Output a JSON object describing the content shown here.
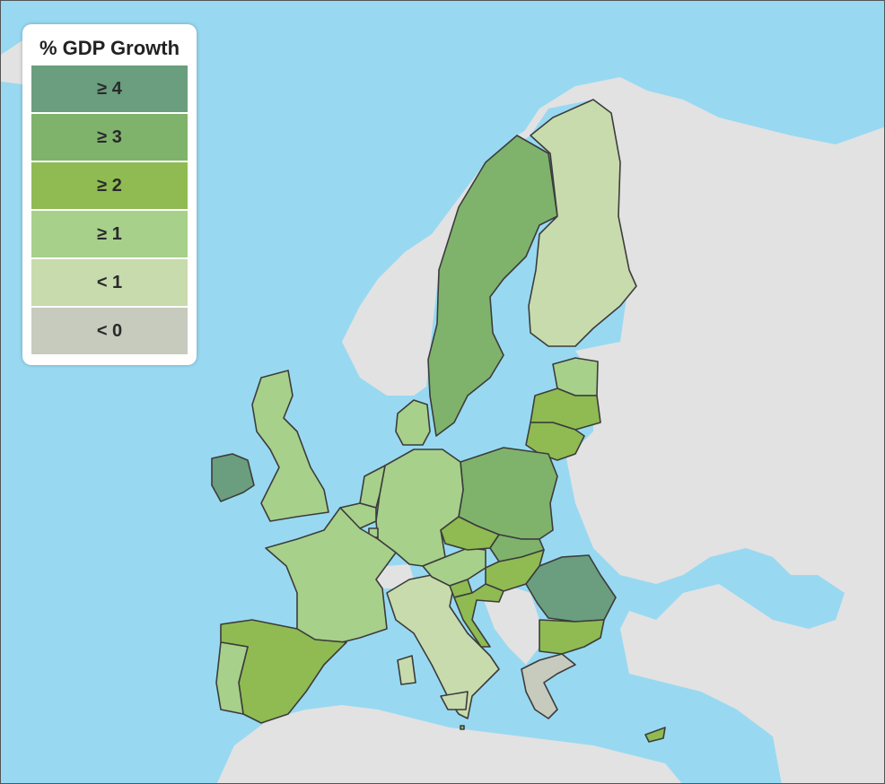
{
  "legend": {
    "title": "% GDP Growth",
    "bins": [
      {
        "label": "≥ 4",
        "color": "#6a9e7e"
      },
      {
        "label": "≥ 3",
        "color": "#7fb36c"
      },
      {
        "label": "≥ 2",
        "color": "#8fbb52"
      },
      {
        "label": "≥ 1",
        "color": "#a7d08a"
      },
      {
        "label": "< 1",
        "color": "#c8dbad"
      },
      {
        "label": "< 0",
        "color": "#c7cbbd"
      }
    ]
  },
  "colors": {
    "sea": "#98d9f1",
    "non_eu_land": "#e2e2e2",
    "border": "#3c3c3c"
  },
  "regions": [
    {
      "name": "Ireland",
      "bin": "≥ 4"
    },
    {
      "name": "Romania",
      "bin": "≥ 4"
    },
    {
      "name": "Sweden",
      "bin": "≥ 3"
    },
    {
      "name": "Poland",
      "bin": "≥ 3"
    },
    {
      "name": "Slovakia",
      "bin": "≥ 3"
    },
    {
      "name": "Spain",
      "bin": "≥ 2"
    },
    {
      "name": "Czech Republic",
      "bin": "≥ 2"
    },
    {
      "name": "Hungary",
      "bin": "≥ 2"
    },
    {
      "name": "Bulgaria",
      "bin": "≥ 2"
    },
    {
      "name": "Latvia",
      "bin": "≥ 2"
    },
    {
      "name": "Lithuania",
      "bin": "≥ 2"
    },
    {
      "name": "Slovenia",
      "bin": "≥ 2"
    },
    {
      "name": "Croatia",
      "bin": "≥ 2"
    },
    {
      "name": "Cyprus",
      "bin": "≥ 2"
    },
    {
      "name": "Malta",
      "bin": "≥ 2"
    },
    {
      "name": "United Kingdom",
      "bin": "≥ 1"
    },
    {
      "name": "France",
      "bin": "≥ 1"
    },
    {
      "name": "Germany",
      "bin": "≥ 1"
    },
    {
      "name": "Netherlands",
      "bin": "≥ 1"
    },
    {
      "name": "Belgium",
      "bin": "≥ 1"
    },
    {
      "name": "Luxembourg",
      "bin": "≥ 1"
    },
    {
      "name": "Austria",
      "bin": "≥ 1"
    },
    {
      "name": "Portugal",
      "bin": "≥ 1"
    },
    {
      "name": "Denmark",
      "bin": "≥ 1"
    },
    {
      "name": "Estonia",
      "bin": "≥ 1"
    },
    {
      "name": "Finland",
      "bin": "< 1"
    },
    {
      "name": "Italy",
      "bin": "< 1"
    },
    {
      "name": "Greece",
      "bin": "< 0"
    }
  ]
}
